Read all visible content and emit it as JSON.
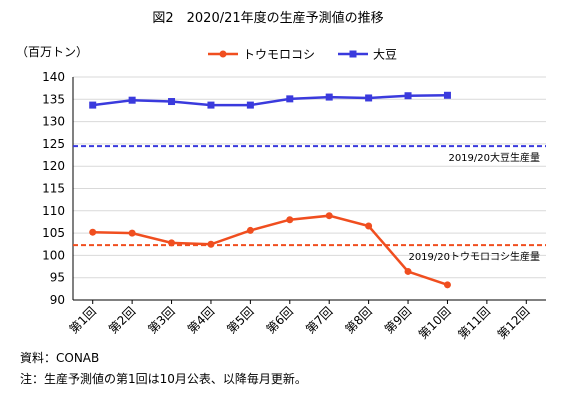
{
  "chart_data": {
    "type": "line",
    "title": "図2　2020/21年度の生産予測値の推移",
    "ylabel": "（百万トン）",
    "xlabel": "",
    "ylim": [
      90,
      140
    ],
    "yticks": [
      90,
      95,
      100,
      105,
      110,
      115,
      120,
      125,
      130,
      135,
      140
    ],
    "grid": "horizontal",
    "legend_position": "top",
    "categories": [
      "第1回",
      "第2回",
      "第3回",
      "第4回",
      "第5回",
      "第6回",
      "第7回",
      "第8回",
      "第9回",
      "第10回",
      "第11回",
      "第12回"
    ],
    "series": [
      {
        "name": "トウモロコシ",
        "color": "#f04e1f",
        "marker": "circle",
        "values": [
          105.2,
          105.0,
          102.8,
          102.5,
          105.6,
          108.0,
          108.9,
          106.6,
          96.4,
          93.4,
          null,
          null
        ]
      },
      {
        "name": "大豆",
        "color": "#3a3add",
        "marker": "square",
        "values": [
          133.7,
          134.8,
          134.5,
          133.7,
          133.7,
          135.1,
          135.5,
          135.3,
          135.8,
          135.9,
          null,
          null
        ]
      }
    ],
    "reference_lines": [
      {
        "label": "2019/20大豆生産量",
        "value": 124.5,
        "color": "#3a3add"
      },
      {
        "label": "2019/20トウモロコシ生産量",
        "value": 102.3,
        "color": "#f04e1f"
      }
    ]
  },
  "notes": {
    "source": "資料：CONAB",
    "footnote": "注：生産予測値の第1回は10月公表、以降毎月更新。"
  }
}
